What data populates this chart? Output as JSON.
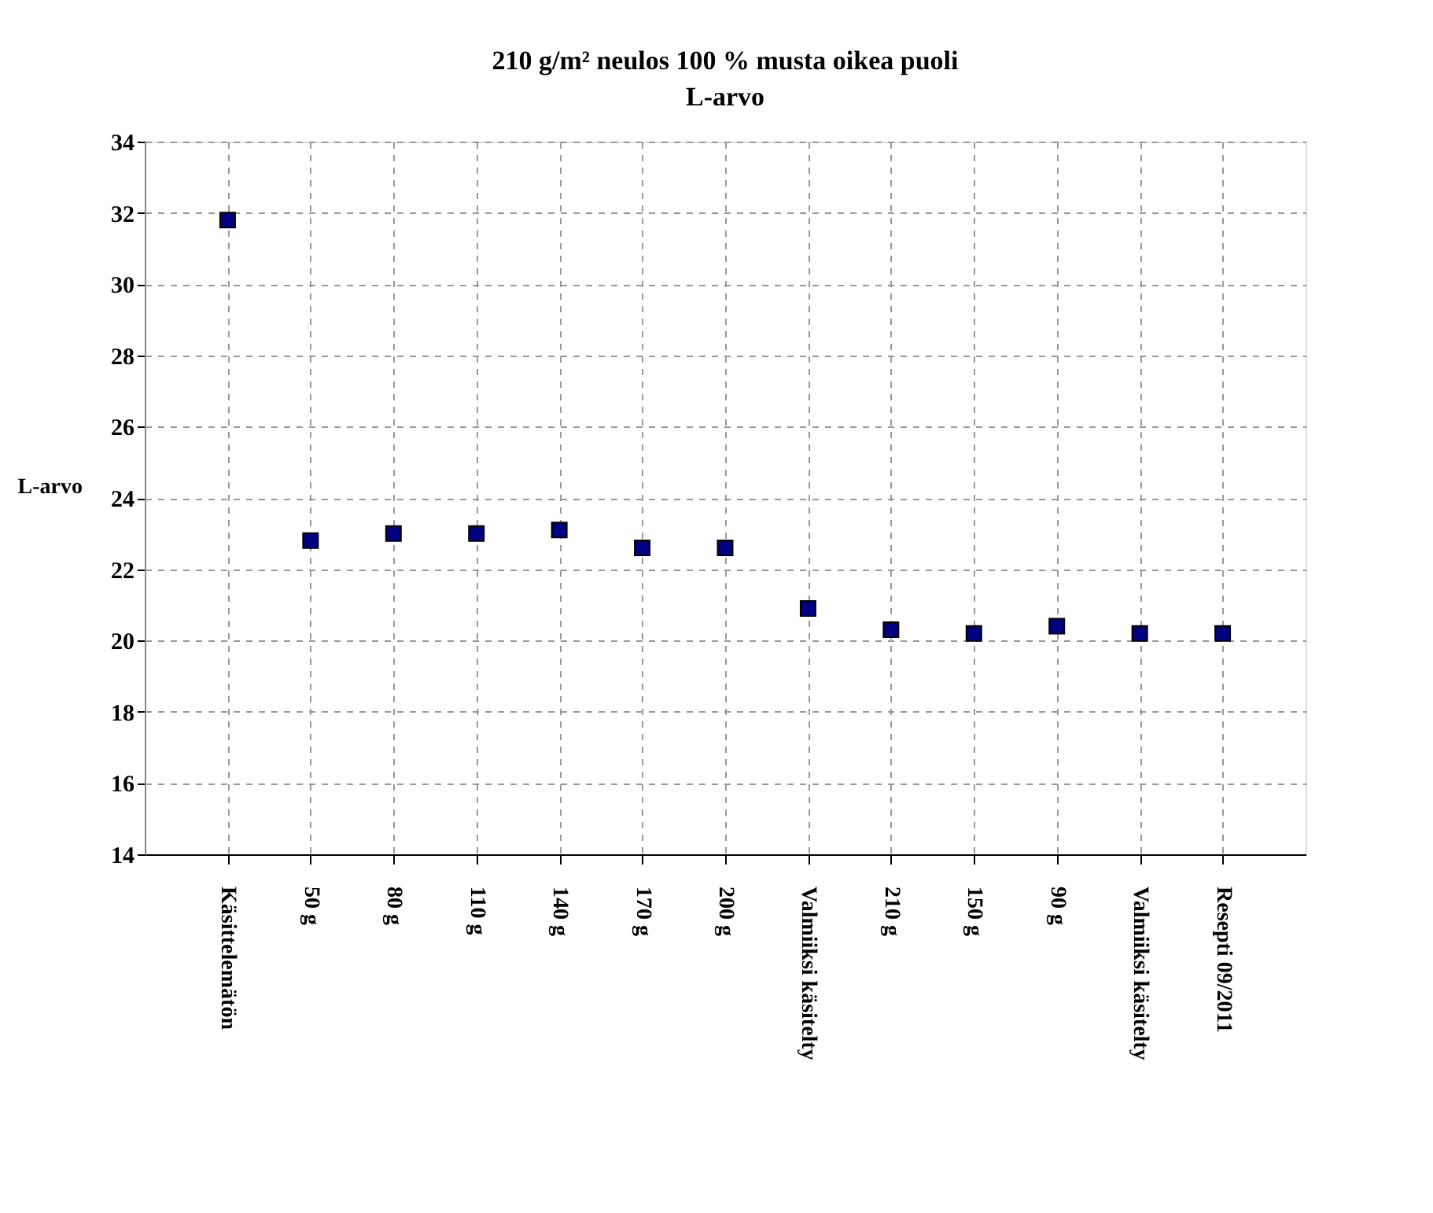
{
  "chart_data": {
    "type": "scatter",
    "title": "210 g/m² neulos 100 % musta oikea puoli",
    "subtitle": "L-arvo",
    "ylabel": "L-arvo",
    "categories": [
      "Käsittelemätön",
      "50 g",
      "80 g",
      "110 g",
      "140 g",
      "170 g",
      "200 g",
      "Valmiiksi käsitelty",
      "210 g",
      "150 g",
      "90 g",
      "Valmiiksi käsitelty",
      "Resepti 09/2011"
    ],
    "series": [
      {
        "color": "#000080",
        "values": [
          31.8,
          22.8,
          23.0,
          23.0,
          23.1,
          22.6,
          22.6,
          20.9,
          20.3,
          20.2,
          20.4,
          20.2,
          20.2
        ]
      }
    ],
    "ylim": [
      14,
      34
    ],
    "yticks": [
      14,
      16,
      18,
      20,
      22,
      24,
      26,
      28,
      30,
      32,
      34
    ],
    "grid": true,
    "marker": "square",
    "legend": false
  }
}
